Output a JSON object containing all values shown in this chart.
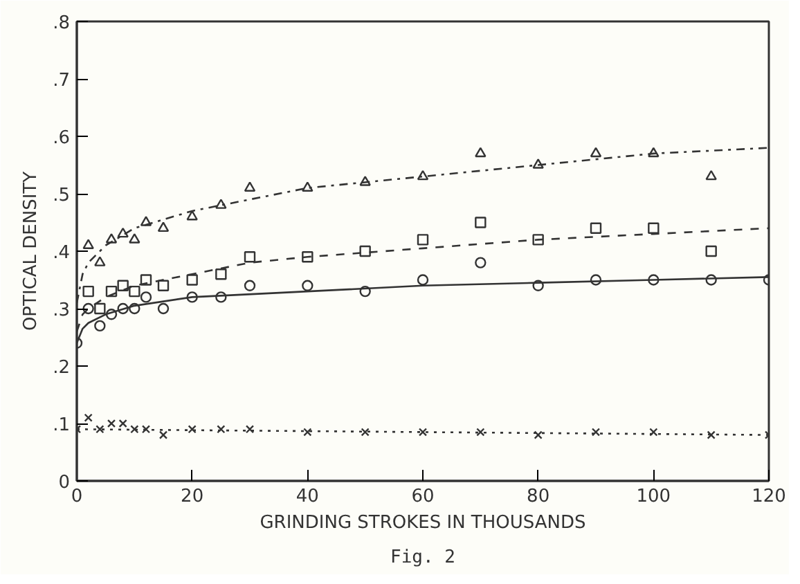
{
  "chart_data": {
    "type": "scatter",
    "xlabel": "GRINDING STROKES IN THOUSANDS",
    "ylabel": "OPTICAL DENSITY",
    "annotations": [
      "Fig. 2"
    ],
    "xlim": [
      0,
      120
    ],
    "ylim": [
      0,
      0.8
    ],
    "xticks": [
      0,
      20,
      40,
      60,
      80,
      100,
      120
    ],
    "yticks": [
      {
        "value": 0,
        "label": "0"
      },
      {
        "value": 0.1,
        "label": ".1"
      },
      {
        "value": 0.2,
        "label": ".2"
      },
      {
        "value": 0.3,
        "label": ".3"
      },
      {
        "value": 0.4,
        "label": ".4"
      },
      {
        "value": 0.5,
        "label": ".5"
      },
      {
        "value": 0.6,
        "label": ".6"
      },
      {
        "value": 0.7,
        "label": ".7"
      },
      {
        "value": 0.8,
        "label": ".8"
      }
    ],
    "grid": false,
    "x": [
      0,
      2,
      4,
      6,
      8,
      10,
      12,
      15,
      20,
      25,
      30,
      40,
      50,
      60,
      70,
      80,
      90,
      100,
      110,
      120
    ],
    "series": [
      {
        "marker": "triangle",
        "color": "#333333",
        "x": [
          2,
          4,
          6,
          8,
          10,
          12,
          15,
          20,
          25,
          30,
          40,
          50,
          60,
          70,
          80,
          90,
          100,
          110
        ],
        "values": [
          0.41,
          0.38,
          0.42,
          0.43,
          0.42,
          0.45,
          0.44,
          0.46,
          0.48,
          0.51,
          0.51,
          0.52,
          0.53,
          0.57,
          0.55,
          0.57,
          0.57,
          0.53
        ]
      },
      {
        "marker": "square",
        "color": "#333333",
        "x": [
          2,
          4,
          6,
          8,
          10,
          12,
          15,
          20,
          25,
          30,
          40,
          50,
          60,
          70,
          80,
          90,
          100,
          110
        ],
        "values": [
          0.33,
          0.3,
          0.33,
          0.34,
          0.33,
          0.35,
          0.34,
          0.35,
          0.36,
          0.39,
          0.39,
          0.4,
          0.42,
          0.45,
          0.42,
          0.44,
          0.44,
          0.4
        ]
      },
      {
        "marker": "circle",
        "color": "#333333",
        "values": [
          0.24,
          0.3,
          0.27,
          0.29,
          0.3,
          0.3,
          0.32,
          0.3,
          0.32,
          0.32,
          0.34,
          0.34,
          0.33,
          0.35,
          0.38,
          0.34,
          0.35,
          0.35,
          0.35,
          0.35
        ]
      },
      {
        "marker": "cross",
        "color": "#333333",
        "values": [
          0.09,
          0.11,
          0.09,
          0.1,
          0.1,
          0.09,
          0.09,
          0.08,
          0.09,
          0.09,
          0.09,
          0.085,
          0.085,
          0.085,
          0.085,
          0.08,
          0.085,
          0.085,
          0.08,
          0.08
        ]
      },
      {
        "type": "line",
        "line_style": "dashdot",
        "color": "#333333",
        "x": [
          0,
          1,
          2,
          5,
          10,
          20,
          30,
          40,
          60,
          80,
          100,
          120
        ],
        "values": [
          0.31,
          0.36,
          0.38,
          0.41,
          0.44,
          0.47,
          0.49,
          0.51,
          0.53,
          0.55,
          0.57,
          0.58
        ]
      },
      {
        "type": "line",
        "line_style": "dashed",
        "color": "#333333",
        "x": [
          0,
          1,
          2,
          5,
          10,
          20,
          30,
          40,
          60,
          80,
          100,
          120
        ],
        "values": [
          0.26,
          0.29,
          0.3,
          0.32,
          0.34,
          0.36,
          0.38,
          0.39,
          0.405,
          0.42,
          0.43,
          0.44
        ]
      },
      {
        "type": "line",
        "line_style": "solid",
        "color": "#333333",
        "x": [
          0,
          1,
          2,
          5,
          10,
          20,
          40,
          60,
          80,
          100,
          120
        ],
        "values": [
          0.24,
          0.265,
          0.275,
          0.29,
          0.305,
          0.32,
          0.33,
          0.34,
          0.345,
          0.35,
          0.355
        ]
      },
      {
        "type": "line",
        "line_style": "dotted",
        "color": "#333333",
        "x": [
          0,
          120
        ],
        "values": [
          0.09,
          0.08
        ]
      }
    ]
  }
}
